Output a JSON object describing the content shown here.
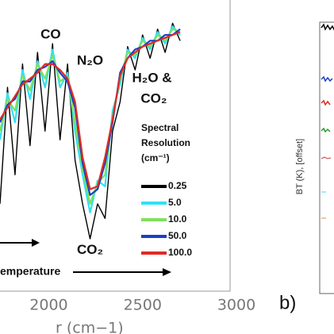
{
  "chart_data": {
    "type": "line",
    "x_label": "r (cm−1)",
    "panel_label": "b)",
    "right_panel_y_label": "BT (K), [offset]",
    "arrow_label": "emperature",
    "legend_title": [
      "Spectral",
      "Resolution",
      "(cm⁻¹)"
    ],
    "annotations": [
      {
        "text": "CO",
        "x": 2010,
        "y": 0.88
      },
      {
        "text": "N₂O",
        "x": 2220,
        "y": 0.79
      },
      {
        "text": "H₂O &",
        "x": 2550,
        "y": 0.73
      },
      {
        "text": "CO₂",
        "x": 2560,
        "y": 0.66
      },
      {
        "text": "CO₂",
        "x": 2220,
        "y": 0.14
      }
    ],
    "x": [
      1740,
      1780,
      1820,
      1860,
      1900,
      1940,
      1980,
      2020,
      2060,
      2100,
      2140,
      2180,
      2220,
      2260,
      2300,
      2340,
      2380,
      2420,
      2460,
      2500,
      2540,
      2580,
      2620,
      2660,
      2700
    ],
    "xlim": [
      1740,
      3000
    ],
    "xticks": [
      2000,
      2500,
      3000
    ],
    "ylim": [
      0,
      1
    ],
    "series": [
      {
        "name": "0.25",
        "color": "#000000",
        "values": [
          0.3,
          0.7,
          0.4,
          0.78,
          0.5,
          0.82,
          0.55,
          0.85,
          0.52,
          0.78,
          0.45,
          0.3,
          0.18,
          0.3,
          0.25,
          0.55,
          0.65,
          0.84,
          0.76,
          0.88,
          0.8,
          0.9,
          0.82,
          0.92,
          0.86
        ]
      },
      {
        "name": "5.0",
        "color": "#33e0f5",
        "values": [
          0.52,
          0.68,
          0.58,
          0.76,
          0.66,
          0.79,
          0.7,
          0.83,
          0.7,
          0.75,
          0.55,
          0.4,
          0.27,
          0.38,
          0.36,
          0.62,
          0.71,
          0.83,
          0.8,
          0.87,
          0.83,
          0.89,
          0.85,
          0.91,
          0.88
        ]
      },
      {
        "name": "10.0",
        "color": "#7ee05a",
        "values": [
          0.55,
          0.66,
          0.62,
          0.74,
          0.69,
          0.78,
          0.73,
          0.81,
          0.72,
          0.74,
          0.58,
          0.42,
          0.3,
          0.37,
          0.4,
          0.6,
          0.73,
          0.82,
          0.81,
          0.86,
          0.84,
          0.88,
          0.86,
          0.9,
          0.89
        ]
      },
      {
        "name": "50.0",
        "color": "#1a3fc8",
        "values": [
          0.58,
          0.64,
          0.66,
          0.72,
          0.72,
          0.76,
          0.77,
          0.79,
          0.75,
          0.72,
          0.63,
          0.44,
          0.33,
          0.35,
          0.44,
          0.58,
          0.75,
          0.8,
          0.83,
          0.84,
          0.86,
          0.86,
          0.88,
          0.88,
          0.9
        ]
      },
      {
        "name": "100.0",
        "color": "#e02a24",
        "values": [
          0.59,
          0.63,
          0.67,
          0.71,
          0.73,
          0.75,
          0.78,
          0.78,
          0.76,
          0.73,
          0.65,
          0.46,
          0.35,
          0.36,
          0.46,
          0.59,
          0.74,
          0.8,
          0.82,
          0.84,
          0.85,
          0.86,
          0.87,
          0.88,
          0.89
        ]
      }
    ]
  }
}
